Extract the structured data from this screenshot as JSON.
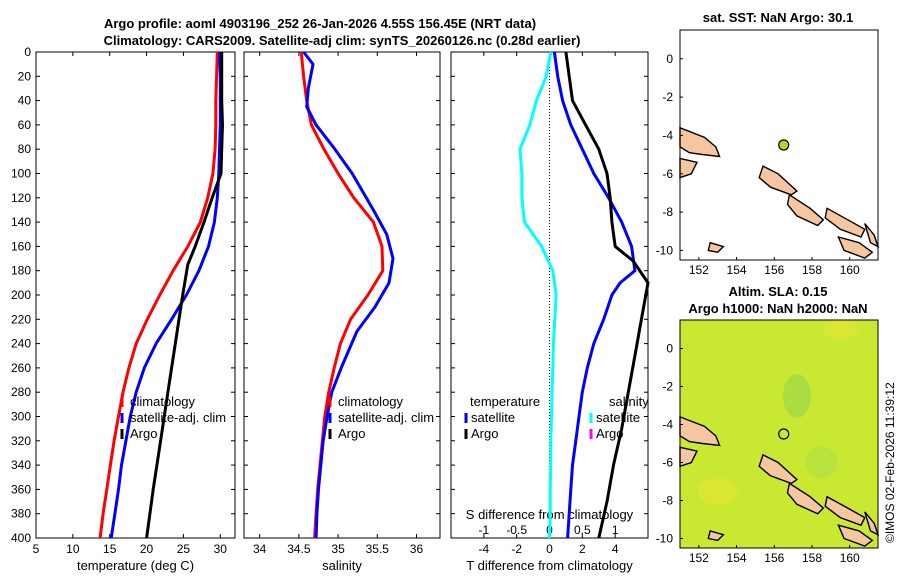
{
  "title_line1": "Argo profile: aoml 4903196_252 26-Jan-2026 4.55S 156.45E (NRT data)",
  "title_line2": "Climatology: CARS2009. Satellite-adj clim: synTS_20260126.nc (0.28d earlier)",
  "watermark": "©IMOS 02-Feb-2026 11:39:12",
  "colors": {
    "climatology": "#ff0000",
    "satellite": "#0000ff",
    "argo": "#000000",
    "sal_sat": "#00ffff",
    "sal_argo": "#ff00ff",
    "land": "#f5c6a0",
    "sla_bg": "#c8e832"
  },
  "chart_data": [
    {
      "type": "line",
      "id": "temperature",
      "xlabel": "temperature (deg C)",
      "ylabel": "",
      "xlim": [
        5,
        32
      ],
      "ylim": [
        400,
        0
      ],
      "xticks": [
        5,
        10,
        15,
        20,
        25,
        30
      ],
      "yticks": [
        0,
        20,
        40,
        60,
        80,
        100,
        120,
        140,
        160,
        180,
        200,
        220,
        240,
        260,
        280,
        300,
        320,
        340,
        360,
        380,
        400
      ],
      "legend": [
        "climatology",
        "satellite-adj. clim",
        "Argo"
      ],
      "series": [
        {
          "name": "climatology",
          "points": [
            [
              29.6,
              0
            ],
            [
              29.5,
              20
            ],
            [
              29.4,
              40
            ],
            [
              29.4,
              60
            ],
            [
              29.3,
              80
            ],
            [
              29,
              100
            ],
            [
              28.3,
              120
            ],
            [
              27.3,
              140
            ],
            [
              25.6,
              160
            ],
            [
              23.6,
              180
            ],
            [
              21.8,
              200
            ],
            [
              20.1,
              220
            ],
            [
              18.6,
              240
            ],
            [
              17.6,
              260
            ],
            [
              16.8,
              280
            ],
            [
              16.2,
              300
            ],
            [
              15.6,
              320
            ],
            [
              15.1,
              340
            ],
            [
              14.6,
              360
            ],
            [
              14.1,
              380
            ],
            [
              13.7,
              400
            ]
          ]
        },
        {
          "name": "satellite-adj. clim",
          "points": [
            [
              29.9,
              0
            ],
            [
              30,
              20
            ],
            [
              30,
              40
            ],
            [
              30,
              60
            ],
            [
              29.9,
              80
            ],
            [
              29.8,
              100
            ],
            [
              29.6,
              120
            ],
            [
              29.2,
              140
            ],
            [
              28.4,
              160
            ],
            [
              27.1,
              180
            ],
            [
              25.4,
              200
            ],
            [
              23.4,
              220
            ],
            [
              21.3,
              240
            ],
            [
              19.7,
              260
            ],
            [
              18.6,
              280
            ],
            [
              17.8,
              300
            ],
            [
              17.2,
              320
            ],
            [
              16.6,
              340
            ],
            [
              16.2,
              360
            ],
            [
              15.7,
              380
            ],
            [
              15.2,
              400
            ]
          ]
        },
        {
          "name": "Argo",
          "points": [
            [
              30.2,
              0
            ],
            [
              30.2,
              20
            ],
            [
              30.2,
              40
            ],
            [
              30.3,
              60
            ],
            [
              30.2,
              80
            ],
            [
              30.1,
              100
            ],
            [
              28.9,
              120
            ],
            [
              27.8,
              140
            ],
            [
              26.6,
              160
            ],
            [
              25.6,
              175
            ],
            [
              24.9,
              200
            ],
            [
              23.9,
              240
            ],
            [
              22.9,
              280
            ],
            [
              21.9,
              320
            ],
            [
              20.9,
              360
            ],
            [
              20.0,
              400
            ]
          ]
        }
      ]
    },
    {
      "type": "line",
      "id": "salinity",
      "xlabel": "salinity",
      "ylabel": "",
      "xlim": [
        33.8,
        36.3
      ],
      "ylim": [
        400,
        0
      ],
      "xticks": [
        34,
        34.5,
        35,
        35.5,
        36
      ],
      "legend": [
        "climatology",
        "satellite-adj. clim",
        "Argo"
      ],
      "series": [
        {
          "name": "climatology",
          "points": [
            [
              34.53,
              0
            ],
            [
              34.56,
              20
            ],
            [
              34.6,
              40
            ],
            [
              34.66,
              60
            ],
            [
              34.82,
              80
            ],
            [
              35.0,
              100
            ],
            [
              35.2,
              120
            ],
            [
              35.45,
              140
            ],
            [
              35.56,
              160
            ],
            [
              35.57,
              180
            ],
            [
              35.38,
              200
            ],
            [
              35.16,
              220
            ],
            [
              35.03,
              240
            ],
            [
              34.95,
              260
            ],
            [
              34.88,
              280
            ],
            [
              34.83,
              300
            ],
            [
              34.8,
              320
            ],
            [
              34.77,
              340
            ],
            [
              34.74,
              360
            ],
            [
              34.72,
              380
            ],
            [
              34.7,
              400
            ]
          ]
        },
        {
          "name": "satellite-adj. clim",
          "points": [
            [
              34.56,
              0
            ],
            [
              34.68,
              10
            ],
            [
              34.62,
              30
            ],
            [
              34.6,
              45
            ],
            [
              34.72,
              60
            ],
            [
              34.96,
              80
            ],
            [
              35.18,
              100
            ],
            [
              35.45,
              130
            ],
            [
              35.62,
              150
            ],
            [
              35.7,
              170
            ],
            [
              35.65,
              190
            ],
            [
              35.47,
              210
            ],
            [
              35.24,
              230
            ],
            [
              35.04,
              260
            ],
            [
              34.92,
              280
            ],
            [
              34.86,
              300
            ],
            [
              34.81,
              320
            ],
            [
              34.78,
              340
            ],
            [
              34.75,
              360
            ],
            [
              34.73,
              380
            ],
            [
              34.72,
              400
            ]
          ]
        },
        {
          "name": "Argo",
          "points": []
        }
      ]
    },
    {
      "type": "line",
      "id": "difference",
      "xlabel": "T difference from climatology",
      "ylabel": "",
      "xlim": [
        -6,
        6
      ],
      "ylim": [
        400,
        0
      ],
      "xticks": [
        -4,
        -2,
        0,
        2,
        4
      ],
      "x2label": "S difference from climatology",
      "x2ticks": [
        -1,
        -0.5,
        0,
        0.5,
        1
      ],
      "legend_temperature": [
        "satellite",
        "Argo"
      ],
      "legend_salinity": [
        "satellite",
        "Argo"
      ],
      "legend_headers": [
        "temperature",
        "salinity"
      ],
      "series": [
        {
          "name": "temperature satellite",
          "points": [
            [
              0.3,
              0
            ],
            [
              0.5,
              20
            ],
            [
              0.8,
              40
            ],
            [
              1.3,
              60
            ],
            [
              2.0,
              80
            ],
            [
              2.7,
              100
            ],
            [
              3.6,
              120
            ],
            [
              4.4,
              140
            ],
            [
              5.0,
              160
            ],
            [
              5.2,
              180
            ],
            [
              4.3,
              190
            ],
            [
              3.8,
              200
            ],
            [
              3.3,
              220
            ],
            [
              2.7,
              240
            ],
            [
              2.3,
              260
            ],
            [
              2.0,
              280
            ],
            [
              1.8,
              300
            ],
            [
              1.6,
              320
            ],
            [
              1.4,
              340
            ],
            [
              1.3,
              360
            ],
            [
              1.2,
              380
            ],
            [
              1.1,
              400
            ]
          ]
        },
        {
          "name": "temperature Argo",
          "points": [
            [
              1.0,
              0
            ],
            [
              1.2,
              20
            ],
            [
              1.4,
              40
            ],
            [
              2.2,
              60
            ],
            [
              3.0,
              80
            ],
            [
              3.5,
              100
            ],
            [
              3.7,
              120
            ],
            [
              3.8,
              140
            ],
            [
              4.0,
              160
            ],
            [
              5.1,
              172
            ],
            [
              6.0,
              190
            ],
            [
              5.6,
              220
            ],
            [
              5.2,
              250
            ],
            [
              4.8,
              280
            ],
            [
              4.4,
              310
            ],
            [
              3.9,
              340
            ],
            [
              3.5,
              370
            ],
            [
              3.0,
              400
            ]
          ]
        },
        {
          "name": "salinity satellite",
          "points": [
            [
              0.02,
              0
            ],
            [
              -0.05,
              20
            ],
            [
              -0.2,
              40
            ],
            [
              -0.3,
              60
            ],
            [
              -0.45,
              80
            ],
            [
              -0.42,
              100
            ],
            [
              -0.42,
              120
            ],
            [
              -0.38,
              140
            ],
            [
              -0.12,
              160
            ],
            [
              0.05,
              180
            ],
            [
              0.1,
              200
            ],
            [
              0.08,
              220
            ],
            [
              0.06,
              240
            ],
            [
              0.05,
              260
            ],
            [
              0.04,
              280
            ],
            [
              0.03,
              300
            ],
            [
              0.02,
              320
            ],
            [
              0.02,
              340
            ],
            [
              0.01,
              360
            ],
            [
              0.01,
              380
            ],
            [
              0.0,
              400
            ]
          ]
        },
        {
          "name": "salinity Argo",
          "points": []
        }
      ]
    }
  ],
  "map_sst": {
    "title": "sat. SST: NaN Argo: 30.1",
    "xticks": [
      152,
      154,
      156,
      158,
      160
    ],
    "yticks": [
      0,
      -2,
      -4,
      -6,
      -8,
      -10
    ],
    "lon_range": [
      151,
      161.5
    ],
    "lat_range": [
      -10.5,
      1.5
    ],
    "marker": [
      156.5,
      -4.5
    ]
  },
  "map_sla": {
    "title1": "Altim. SLA: 0.15",
    "title2": "Argo h1000: NaN h2000: NaN",
    "xticks": [
      152,
      154,
      156,
      158,
      160
    ],
    "yticks": [
      0,
      -2,
      -4,
      -6,
      -8,
      -10
    ],
    "lon_range": [
      151,
      161.5
    ],
    "lat_range": [
      -10.5,
      1.5
    ],
    "marker": [
      156.5,
      -4.5
    ]
  }
}
